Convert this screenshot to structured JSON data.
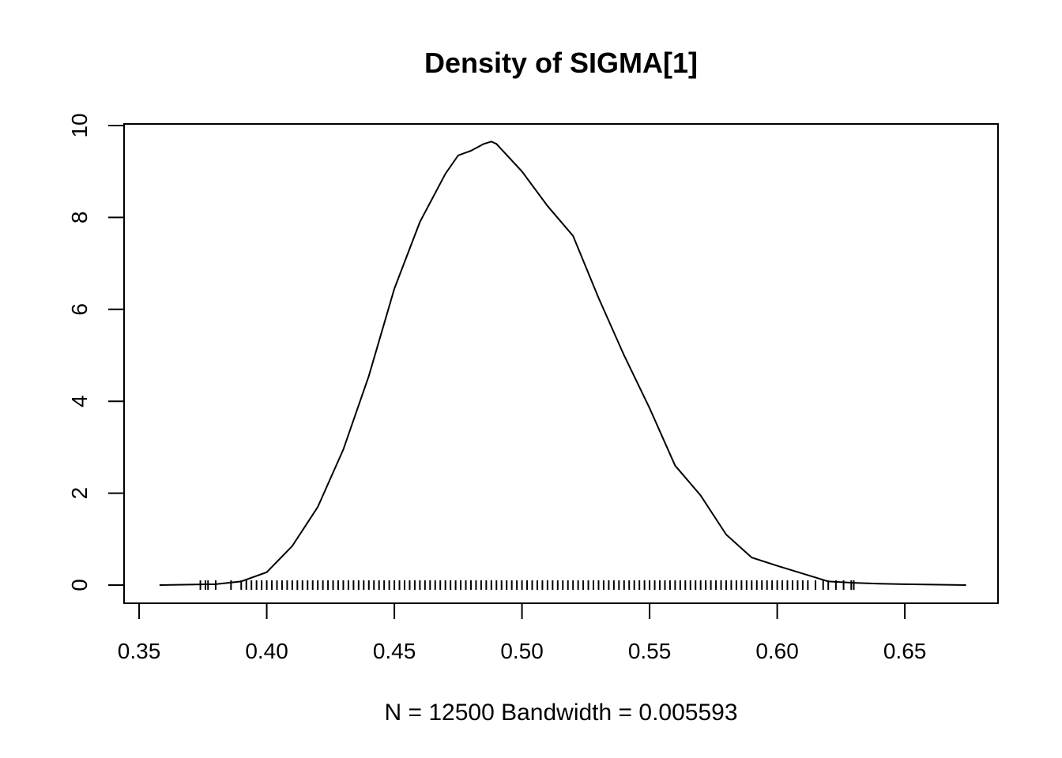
{
  "chart_data": {
    "type": "line",
    "title": "Density of SIGMA[1]",
    "xlabel": "N = 12500   Bandwidth = 0.005593",
    "color": "#000000",
    "x": [
      0.358,
      0.38,
      0.39,
      0.4,
      0.41,
      0.42,
      0.43,
      0.44,
      0.45,
      0.46,
      0.47,
      0.475,
      0.48,
      0.485,
      0.488,
      0.49,
      0.5,
      0.51,
      0.52,
      0.53,
      0.54,
      0.55,
      0.56,
      0.57,
      0.58,
      0.59,
      0.6,
      0.61,
      0.62,
      0.63,
      0.64,
      0.65,
      0.674
    ],
    "y": [
      0.0,
      0.02,
      0.08,
      0.28,
      0.85,
      1.7,
      2.95,
      4.55,
      6.45,
      7.9,
      8.95,
      9.35,
      9.45,
      9.6,
      9.65,
      9.6,
      9.0,
      8.25,
      7.6,
      6.25,
      5.0,
      3.85,
      2.6,
      1.95,
      1.1,
      0.6,
      0.42,
      0.25,
      0.08,
      0.05,
      0.03,
      0.02,
      0.0
    ],
    "rug": [
      0.374,
      0.376,
      0.377,
      0.38,
      0.386,
      0.39,
      0.392,
      0.394,
      0.396,
      0.398,
      0.4,
      0.402,
      0.404,
      0.406,
      0.408,
      0.41,
      0.412,
      0.414,
      0.416,
      0.418,
      0.42,
      0.422,
      0.424,
      0.426,
      0.428,
      0.43,
      0.432,
      0.434,
      0.436,
      0.438,
      0.44,
      0.442,
      0.444,
      0.446,
      0.448,
      0.45,
      0.452,
      0.454,
      0.456,
      0.458,
      0.46,
      0.462,
      0.464,
      0.466,
      0.468,
      0.47,
      0.472,
      0.474,
      0.476,
      0.478,
      0.48,
      0.482,
      0.484,
      0.486,
      0.488,
      0.49,
      0.492,
      0.494,
      0.496,
      0.498,
      0.5,
      0.502,
      0.504,
      0.506,
      0.508,
      0.51,
      0.512,
      0.514,
      0.516,
      0.518,
      0.52,
      0.522,
      0.524,
      0.526,
      0.528,
      0.53,
      0.532,
      0.534,
      0.536,
      0.538,
      0.54,
      0.542,
      0.544,
      0.546,
      0.548,
      0.55,
      0.552,
      0.554,
      0.556,
      0.558,
      0.56,
      0.562,
      0.564,
      0.566,
      0.568,
      0.57,
      0.572,
      0.574,
      0.576,
      0.578,
      0.58,
      0.582,
      0.584,
      0.586,
      0.588,
      0.59,
      0.592,
      0.594,
      0.596,
      0.598,
      0.6,
      0.602,
      0.604,
      0.606,
      0.608,
      0.61,
      0.612,
      0.615,
      0.618,
      0.62,
      0.623,
      0.626,
      0.629,
      0.63
    ],
    "xlim": [
      0.3441,
      0.6865
    ],
    "ylim": [
      -0.395,
      10.034
    ],
    "xticks": [
      0.35,
      {
        "value": 0.4,
        "label": "0.40"
      },
      0.45,
      {
        "value": 0.5,
        "label": "0.50"
      },
      0.55,
      {
        "value": 0.6,
        "label": "0.60"
      },
      0.65
    ],
    "yticks": [
      0,
      2,
      4,
      6,
      8,
      10
    ]
  }
}
